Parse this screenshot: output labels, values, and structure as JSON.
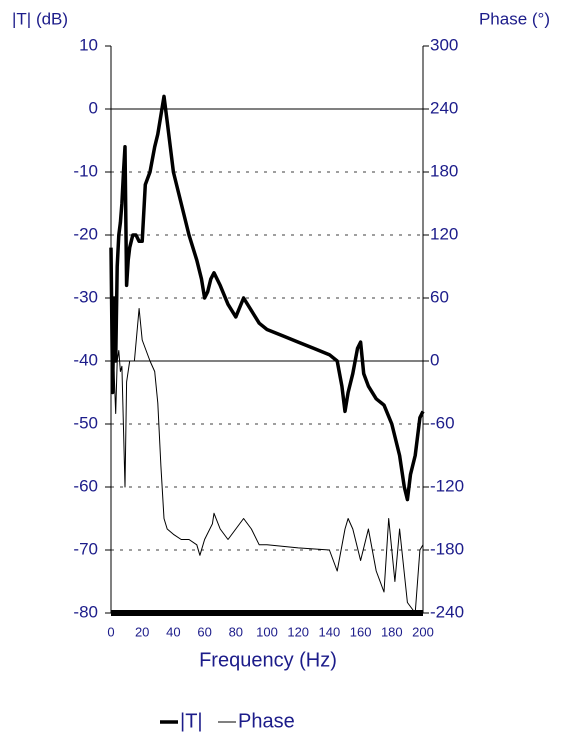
{
  "chart_data": {
    "type": "line",
    "ylabel": "|T| (dB)",
    "y2label": "Phase (°)",
    "xlabel": "Frequency (Hz)",
    "xlim": [
      0,
      200
    ],
    "xticks": [
      0,
      20,
      40,
      60,
      80,
      100,
      120,
      140,
      160,
      180,
      200
    ],
    "ylim": [
      -80,
      10
    ],
    "yticks": [
      -80,
      -70,
      -60,
      -50,
      -40,
      -30,
      -20,
      -10,
      0,
      10
    ],
    "y2lim": [
      -240,
      300
    ],
    "y2ticks": [
      -240,
      -180,
      -120,
      -60,
      0,
      60,
      120,
      180,
      240,
      300
    ],
    "grid": true,
    "legend": "bottom",
    "series": [
      {
        "name": "|T|",
        "color": "#000000",
        "width": 3.5,
        "x": [
          0,
          1,
          2,
          3,
          4,
          5,
          6,
          7,
          8,
          9,
          10,
          11,
          12,
          14,
          16,
          18,
          20,
          22,
          25,
          28,
          30,
          32,
          34,
          36,
          38,
          40,
          45,
          50,
          55,
          58,
          60,
          62,
          64,
          66,
          70,
          75,
          80,
          85,
          90,
          95,
          100,
          110,
          120,
          130,
          140,
          145,
          148,
          150,
          152,
          155,
          158,
          160,
          162,
          165,
          170,
          175,
          180,
          185,
          188,
          190,
          192,
          195,
          198,
          200
        ],
        "values": [
          -22,
          -45,
          -30,
          -40,
          -25,
          -20,
          -18,
          -15,
          -10,
          -6,
          -28,
          -24,
          -22,
          -20,
          -20,
          -21,
          -21,
          -12,
          -10,
          -6,
          -4,
          -1,
          2,
          -2,
          -6,
          -10,
          -15,
          -20,
          -24,
          -27,
          -30,
          -29,
          -27,
          -26,
          -28,
          -31,
          -33,
          -30,
          -32,
          -34,
          -35,
          -36,
          -37,
          -38,
          -39,
          -40,
          -44,
          -48,
          -45,
          -42,
          -38,
          -37,
          -42,
          -44,
          -46,
          -47,
          -50,
          -55,
          -60,
          -62,
          -58,
          -55,
          -49,
          -48
        ]
      },
      {
        "name": "Phase",
        "color": "#000000",
        "width": 1,
        "axis": "y2",
        "x": [
          0,
          2,
          3,
          4,
          5,
          6,
          7,
          9,
          10,
          12,
          15,
          18,
          20,
          25,
          28,
          30,
          32,
          34,
          36,
          40,
          45,
          50,
          55,
          57,
          60,
          65,
          66,
          70,
          75,
          80,
          85,
          90,
          95,
          100,
          120,
          140,
          145,
          150,
          152,
          155,
          160,
          165,
          170,
          175,
          178,
          182,
          185,
          190,
          195,
          198,
          200
        ],
        "values": [
          -20,
          -10,
          -50,
          0,
          10,
          -10,
          -5,
          -120,
          -20,
          0,
          0,
          50,
          20,
          0,
          -10,
          -40,
          -100,
          -150,
          -160,
          -165,
          -170,
          -170,
          -175,
          -185,
          -170,
          -155,
          -145,
          -160,
          -170,
          -160,
          -150,
          -160,
          -175,
          -175,
          -178,
          -180,
          -200,
          -160,
          -150,
          -160,
          -190,
          -160,
          -200,
          -220,
          -150,
          -210,
          -160,
          -230,
          -240,
          -180,
          -175
        ]
      }
    ]
  }
}
